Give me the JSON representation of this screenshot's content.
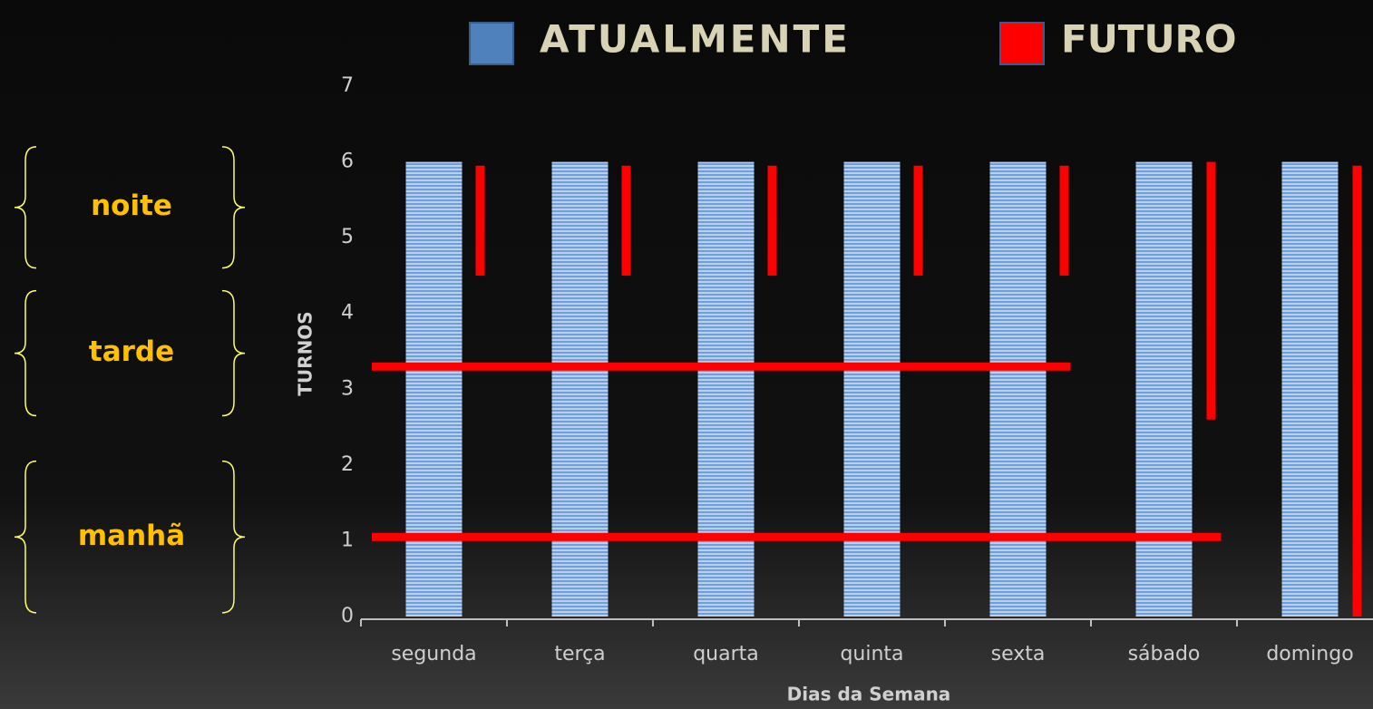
{
  "chart_data": {
    "type": "bar",
    "legend": "top",
    "categories": [
      "segunda",
      "terça",
      "quarta",
      "quinta",
      "sexta",
      "sábado",
      "domingo"
    ],
    "series": [
      {
        "name": "ATUALMENTE",
        "color": "#6f9fd8",
        "values": [
          6,
          6,
          6,
          6,
          6,
          6,
          6
        ]
      },
      {
        "name": "FUTURO",
        "color": "#ff0000",
        "low": [
          4.5,
          4.5,
          4.5,
          4.5,
          4.5,
          2.6,
          0
        ],
        "values": [
          5.95,
          5.95,
          5.95,
          5.95,
          5.95,
          6,
          5.95
        ]
      }
    ],
    "shifts": [
      {
        "y": 3.3,
        "until": "sexta"
      },
      {
        "y": 1.05,
        "until": "sábado"
      }
    ],
    "ylim": [
      0,
      7
    ],
    "yticks": [
      0,
      1,
      2,
      3,
      4,
      5,
      6,
      7
    ],
    "y_label": "TURNOS",
    "x_label": "Dias da Semana",
    "annotations": [
      {
        "text": "noite",
        "from": 4.6,
        "to": 6.2
      },
      {
        "text": "tarde",
        "from": 2.65,
        "to": 4.3
      },
      {
        "text": "manhã",
        "from": 0.05,
        "to": 2.05
      }
    ]
  }
}
